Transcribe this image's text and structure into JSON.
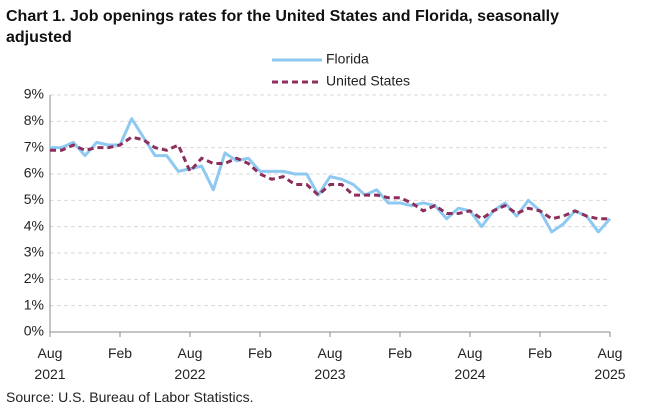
{
  "chart_data": {
    "type": "line",
    "title": "Chart 1. Job openings rates for the United States and Florida, seasonally adjusted",
    "source": "Source: U.S. Bureau of Labor Statistics.",
    "categories": [
      "Aug 2021",
      null,
      null,
      null,
      null,
      null,
      "Feb",
      null,
      null,
      null,
      null,
      null,
      "Aug 2022",
      null,
      null,
      null,
      null,
      null,
      "Feb",
      null,
      null,
      null,
      null,
      null,
      "Aug 2023",
      null,
      null,
      null,
      null,
      null,
      "Feb",
      null,
      null,
      null,
      null,
      null,
      "Aug 2024",
      null,
      null,
      null,
      null,
      null,
      "Feb",
      null,
      null,
      null,
      null,
      null,
      "Aug 2025"
    ],
    "series": [
      {
        "name": "Florida",
        "color": "#8ec9f2",
        "dashed": false,
        "values": [
          7.0,
          7.0,
          7.2,
          6.7,
          7.2,
          7.1,
          7.1,
          8.1,
          7.4,
          6.7,
          6.7,
          6.1,
          6.2,
          6.3,
          5.4,
          6.8,
          6.5,
          6.6,
          6.1,
          6.1,
          6.1,
          6.0,
          6.0,
          5.2,
          5.9,
          5.8,
          5.6,
          5.2,
          5.4,
          4.9,
          4.9,
          4.8,
          4.9,
          4.8,
          4.3,
          4.7,
          4.6,
          4.0,
          4.6,
          4.9,
          4.4,
          5.0,
          4.6,
          3.8,
          4.1,
          4.6,
          4.4,
          3.8,
          4.3
        ]
      },
      {
        "name": "United States",
        "color": "#8c2f5c",
        "dashed": true,
        "values": [
          6.9,
          6.9,
          7.1,
          6.9,
          7.0,
          7.0,
          7.1,
          7.4,
          7.3,
          7.0,
          6.9,
          7.1,
          6.1,
          6.6,
          6.4,
          6.4,
          6.6,
          6.4,
          6.0,
          5.8,
          5.9,
          5.6,
          5.6,
          5.2,
          5.6,
          5.6,
          5.2,
          5.2,
          5.2,
          5.1,
          5.1,
          4.9,
          4.6,
          4.8,
          4.5,
          4.5,
          4.6,
          4.3,
          4.6,
          4.8,
          4.5,
          4.7,
          4.6,
          4.3,
          4.4,
          4.6,
          4.4,
          4.3,
          4.3
        ]
      }
    ],
    "ylim": [
      0,
      9
    ],
    "yticks": [
      {
        "value": 0,
        "label": "0%"
      },
      {
        "value": 1,
        "label": "1%"
      },
      {
        "value": 2,
        "label": "2%"
      },
      {
        "value": 3,
        "label": "3%"
      },
      {
        "value": 4,
        "label": "4%"
      },
      {
        "value": 5,
        "label": "5%"
      },
      {
        "value": 6,
        "label": "6%"
      },
      {
        "value": 7,
        "label": "7%"
      },
      {
        "value": 8,
        "label": "8%"
      },
      {
        "value": 9,
        "label": "9%"
      }
    ],
    "grid": true
  }
}
